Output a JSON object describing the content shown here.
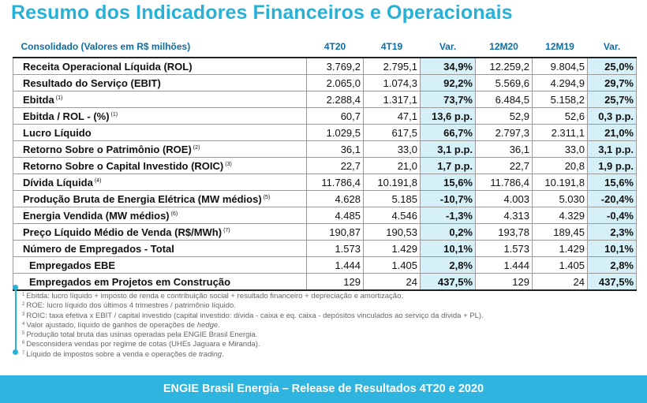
{
  "title": "Resumo dos Indicadores Financeiros e Operacionais",
  "table": {
    "header_label": "Consolidado (Valores em R$ milhões)",
    "columns": [
      "4T20",
      "4T19",
      "Var.",
      "12M20",
      "12M19",
      "Var."
    ],
    "rows": [
      {
        "label": "Receita Operacional Líquida (ROL)",
        "note": "",
        "values": [
          "3.769,2",
          "2.795,1",
          "34,9%",
          "12.259,2",
          "9.804,5",
          "25,0%"
        ]
      },
      {
        "label": "Resultado do Serviço (EBIT)",
        "note": "",
        "values": [
          "2.065,0",
          "1.074,3",
          "92,2%",
          "5.569,6",
          "4.294,9",
          "29,7%"
        ]
      },
      {
        "label": "Ebitda",
        "note": "(1)",
        "values": [
          "2.288,4",
          "1.317,1",
          "73,7%",
          "6.484,5",
          "5.158,2",
          "25,7%"
        ]
      },
      {
        "label": "Ebitda / ROL - (%)",
        "note": "(1)",
        "values": [
          "60,7",
          "47,1",
          "13,6 p.p.",
          "52,9",
          "52,6",
          "0,3 p.p."
        ]
      },
      {
        "label": "Lucro Líquido",
        "note": "",
        "values": [
          "1.029,5",
          "617,5",
          "66,7%",
          "2.797,3",
          "2.311,1",
          "21,0%"
        ]
      },
      {
        "label": "Retorno Sobre o Patrimônio (ROE)",
        "note": "(2)",
        "values": [
          "36,1",
          "33,0",
          "3,1 p.p.",
          "36,1",
          "33,0",
          "3,1 p.p."
        ]
      },
      {
        "label": "Retorno Sobre o Capital Investido (ROIC)",
        "note": "(3)",
        "values": [
          "22,7",
          "21,0",
          "1,7 p.p.",
          "22,7",
          "20,8",
          "1,9 p.p."
        ]
      },
      {
        "label": "Dívida Líquida",
        "note": "(4)",
        "values": [
          "11.786,4",
          "10.191,8",
          "15,6%",
          "11.786,4",
          "10.191,8",
          "15,6%"
        ]
      },
      {
        "label": "Produção Bruta de Energia Elétrica (MW médios)",
        "note": "(5)",
        "values": [
          "4.628",
          "5.185",
          "-10,7%",
          "4.003",
          "5.030",
          "-20,4%"
        ]
      },
      {
        "label": "Energia Vendida (MW médios)",
        "note": "(6)",
        "values": [
          "4.485",
          "4.546",
          "-1,3%",
          "4.313",
          "4.329",
          "-0,4%"
        ]
      },
      {
        "label": "Preço Líquido Médio de Venda (R$/MWh)",
        "note": "(7)",
        "values": [
          "190,87",
          "190,53",
          "0,2%",
          "193,78",
          "189,45",
          "2,3%"
        ]
      },
      {
        "label": "Número de Empregados - Total",
        "note": "",
        "values": [
          "1.573",
          "1.429",
          "10,1%",
          "1.573",
          "1.429",
          "10,1%"
        ]
      },
      {
        "label": "Empregados EBE",
        "note": "",
        "sub": true,
        "values": [
          "1.444",
          "1.405",
          "2,8%",
          "1.444",
          "1.405",
          "2,8%"
        ]
      },
      {
        "label": "Empregados em Projetos em Construção",
        "note": "",
        "sub": true,
        "values": [
          "129",
          "24",
          "437,5%",
          "129",
          "24",
          "437,5%"
        ]
      }
    ]
  },
  "footnotes": [
    {
      "num": "1",
      "parts": [
        {
          "t": "Ebitda: lucro líquido + imposto de renda e contribuição social + resultado financeiro + depreciação e amortização."
        }
      ]
    },
    {
      "num": "2",
      "parts": [
        {
          "t": "ROE: lucro líquido dos últimos 4 trimestres / patrimônio líquido."
        }
      ]
    },
    {
      "num": "3",
      "parts": [
        {
          "t": "ROIC: taxa efetiva x EBIT / capital investido (capital investido: dívida - caixa e eq. caixa - depósitos vinculados ao serviço da dívida + PL)."
        }
      ]
    },
    {
      "num": "4",
      "parts": [
        {
          "t": "Valor ajustado, líquido de ganhos de operações de "
        },
        {
          "t": "hedge",
          "i": true
        },
        {
          "t": "."
        }
      ]
    },
    {
      "num": "5",
      "parts": [
        {
          "t": "Produção total bruta das usinas operadas pela ENGIE Brasil Energia."
        }
      ]
    },
    {
      "num": "6",
      "parts": [
        {
          "t": "Desconsidera vendas por regime de cotas (UHEs Jaguara e Miranda)."
        }
      ]
    },
    {
      "num": "7",
      "parts": [
        {
          "t": "Líquido de impostos sobre a venda e operações de "
        },
        {
          "t": "trading",
          "i": true
        },
        {
          "t": "."
        }
      ]
    }
  ],
  "footer": "ENGIE Brasil Energia – Release de Resultados 4T20 e 2020",
  "colors": {
    "accent": "#27b1d6",
    "header_text": "#0b6fa8",
    "var_bg": "#d6f0f8",
    "footer_bg": "#2fb3df"
  }
}
